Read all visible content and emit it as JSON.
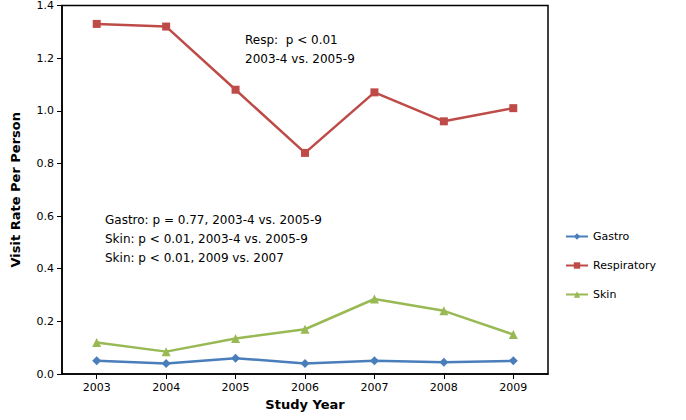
{
  "chart_data": {
    "type": "line",
    "categories": [
      "2003",
      "2004",
      "2005",
      "2006",
      "2007",
      "2008",
      "2009"
    ],
    "x_label": "Study Year",
    "y_label": "Visit Rate Per Person",
    "series": [
      {
        "name": "Gastro",
        "color": "#4a7ebb",
        "marker": "diamond",
        "values": [
          0.05,
          0.04,
          0.06,
          0.04,
          0.05,
          0.045,
          0.05
        ]
      },
      {
        "name": "Respiratory",
        "color": "#be4b48",
        "marker": "square",
        "values": [
          1.33,
          1.32,
          1.08,
          0.84,
          1.07,
          0.96,
          1.01
        ]
      },
      {
        "name": "Skin",
        "color": "#98b954",
        "marker": "triangle",
        "values": [
          0.12,
          0.085,
          0.135,
          0.17,
          0.285,
          0.24,
          0.15
        ]
      }
    ],
    "ylim": [
      0,
      1.4
    ],
    "yticks": [
      {
        "value": 0,
        "label": "0.0"
      },
      0.2,
      0.4,
      0.6,
      0.8,
      {
        "value": 1,
        "label": "1.0"
      },
      1.2,
      1.4
    ],
    "grid": false,
    "legend": "right",
    "annotations": [
      [
        "Resp:  p < 0.01",
        "2003-4 vs. 2005-9"
      ],
      [
        "Gastro: p = 0.77, 2003-4 vs. 2005-9",
        "Skin: p < 0.01, 2003-4 vs. 2005-9",
        "Skin: p < 0.01, 2009 vs. 2007"
      ]
    ]
  }
}
